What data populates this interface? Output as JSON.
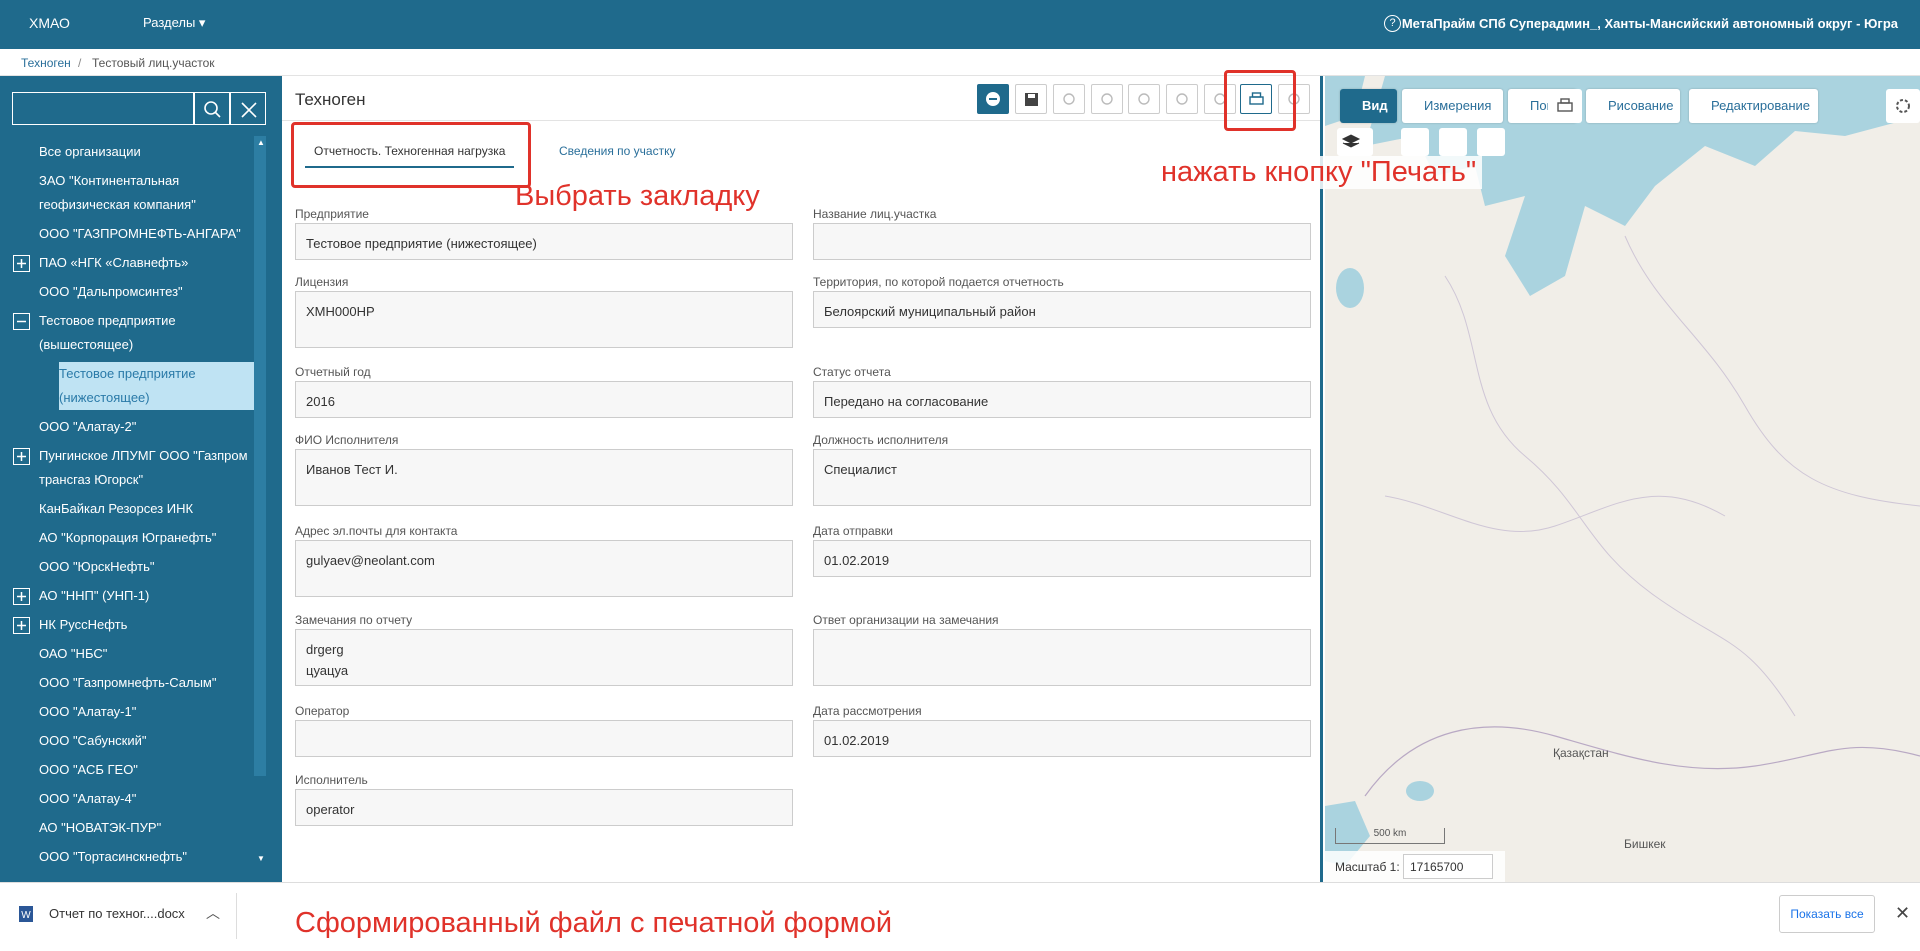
{
  "header": {
    "brand": "ХМАО",
    "menu": "Разделы",
    "help": "?",
    "user": "МетаПрайм СПб Суперадмин_, Ханты-Мансийский автономный округ - Югра"
  },
  "breadcrumb": [
    "Техноген",
    "Тестовый лиц.участок"
  ],
  "sidebar": {
    "items": [
      {
        "label": "Все организации",
        "state": "leaf"
      },
      {
        "label": "ЗАО \"Континентальная геофизическая компания\"",
        "state": "leaf"
      },
      {
        "label": "ООО \"ГАЗПРОМНЕФТЬ-АНГАРА\"",
        "state": "leaf"
      },
      {
        "label": "ПАО «НГК «Славнефть»",
        "state": "collapsed"
      },
      {
        "label": "ООО \"Дальпромсинтез\"",
        "state": "leaf"
      },
      {
        "label": "Тестовое предприятие (вышестоящее)",
        "state": "expanded"
      },
      {
        "label": "Тестовое предприятие (нижестоящее)",
        "state": "selected"
      },
      {
        "label": "ООО \"Алатау-2\"",
        "state": "leaf"
      },
      {
        "label": "Пунгинское ЛПУМГ ООО \"Газпром трансгаз Югорск\"",
        "state": "collapsed"
      },
      {
        "label": "КанБайкал Резорсез ИНК",
        "state": "leaf"
      },
      {
        "label": "АО \"Корпорация Югранефть\"",
        "state": "leaf"
      },
      {
        "label": "ООО \"ЮрскНефть\"",
        "state": "leaf"
      },
      {
        "label": "АО \"ННП\" (УНП-1)",
        "state": "collapsed"
      },
      {
        "label": "НК РуссНефть",
        "state": "collapsed"
      },
      {
        "label": "ОАО \"НБС\"",
        "state": "leaf"
      },
      {
        "label": "ООО \"Газпромнефть-Салым\"",
        "state": "leaf"
      },
      {
        "label": "ООО \"Алатау-1\"",
        "state": "leaf"
      },
      {
        "label": "ООО \"Сабунский\"",
        "state": "leaf"
      },
      {
        "label": "ООО \"АСБ ГЕО\"",
        "state": "leaf"
      },
      {
        "label": "ООО \"Алатау-4\"",
        "state": "leaf"
      },
      {
        "label": "АО \"НОВАТЭК-ПУР\"",
        "state": "leaf"
      },
      {
        "label": "ООО \"Тортасинскнефть\"",
        "state": "leaf"
      }
    ]
  },
  "panel": {
    "title": "Техноген",
    "tabs": [
      "Отчетность. Техногенная нагрузка",
      "Сведения по участку"
    ],
    "active_tab": 0,
    "rows": [
      [
        {
          "label": "Предприятие",
          "value": "Тестовое предприятие (нижестоящее)"
        },
        {
          "label": "Название лиц.участка",
          "value": null
        }
      ],
      [
        {
          "label": "Лицензия",
          "value": "ХМН000НР"
        },
        {
          "label": "Территория, по которой подается отчетность",
          "value": "Белоярский муниципальный район"
        }
      ],
      [
        {
          "label": "Отчетный год",
          "value": "2016"
        },
        {
          "label": "Статус отчета",
          "value": "Передано на согласование"
        }
      ],
      [
        {
          "label": "ФИО Исполнителя",
          "value": "Иванов Тест И."
        },
        {
          "label": "Должность исполнителя",
          "value": "Специалист"
        }
      ],
      [
        {
          "label": "Адрес эл.почты для контакта",
          "value": "gulyaev@neolant.com"
        },
        {
          "label": "Дата отправки",
          "value": "01.02.2019"
        }
      ],
      [
        {
          "label": "Замечания по отчету",
          "value": [
            "drgerg",
            "цуацуа"
          ]
        },
        {
          "label": "Ответ организации на замечания",
          "value": null
        }
      ],
      [
        {
          "label": "Оператор",
          "value": null
        },
        {
          "label": "Дата рассмотрения",
          "value": "01.02.2019"
        }
      ],
      [
        {
          "label": "Исполнитель",
          "value": "operator"
        }
      ]
    ]
  },
  "map": {
    "tools": [
      "Вид",
      "Измерения",
      "Поиск",
      "Рисование",
      "Редактирование"
    ],
    "active_tool": 0,
    "labels": [
      "Қазақстан",
      "Бишкек"
    ],
    "scale_bar": "500 km",
    "scale_label": "Масштаб 1:",
    "scale_value": "17165700"
  },
  "annotations": [
    "Выбрать закладку",
    "нажать кнопку \"Печать\"",
    "Сформированный файл с печатной формой"
  ],
  "download": {
    "file": "Отчет по техног....docx",
    "show_all": "Показать все"
  }
}
